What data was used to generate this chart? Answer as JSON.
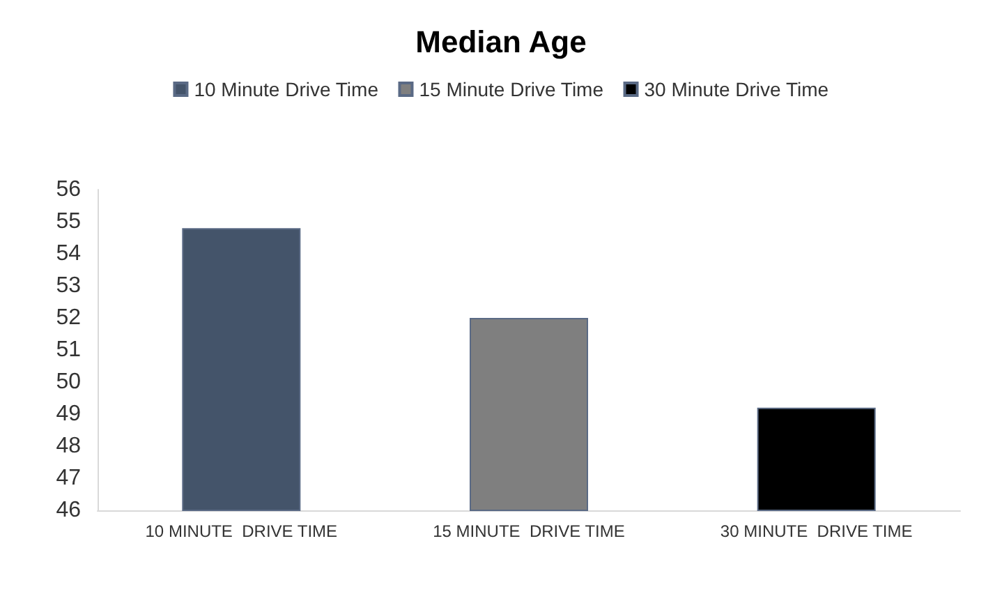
{
  "chart_data": {
    "type": "bar",
    "title": "Median Age",
    "categories": [
      "10 MINUTE  DRIVE TIME",
      "15 MINUTE  DRIVE TIME",
      "30 MINUTE  DRIVE TIME"
    ],
    "series": [
      {
        "name": "10 Minute Drive Time",
        "color": "#44546a",
        "values": [
          54.8,
          null,
          null
        ]
      },
      {
        "name": "15 Minute Drive Time",
        "color": "#7f7f7f",
        "values": [
          null,
          52.0,
          null
        ]
      },
      {
        "name": "30 Minute Drive Time",
        "color": "#000000",
        "values": [
          null,
          null,
          49.2
        ]
      }
    ],
    "ylim": [
      46,
      56
    ],
    "yticks": [
      46,
      47,
      48,
      49,
      50,
      51,
      52,
      53,
      54,
      55,
      56
    ],
    "grid": false,
    "legend": "top"
  }
}
